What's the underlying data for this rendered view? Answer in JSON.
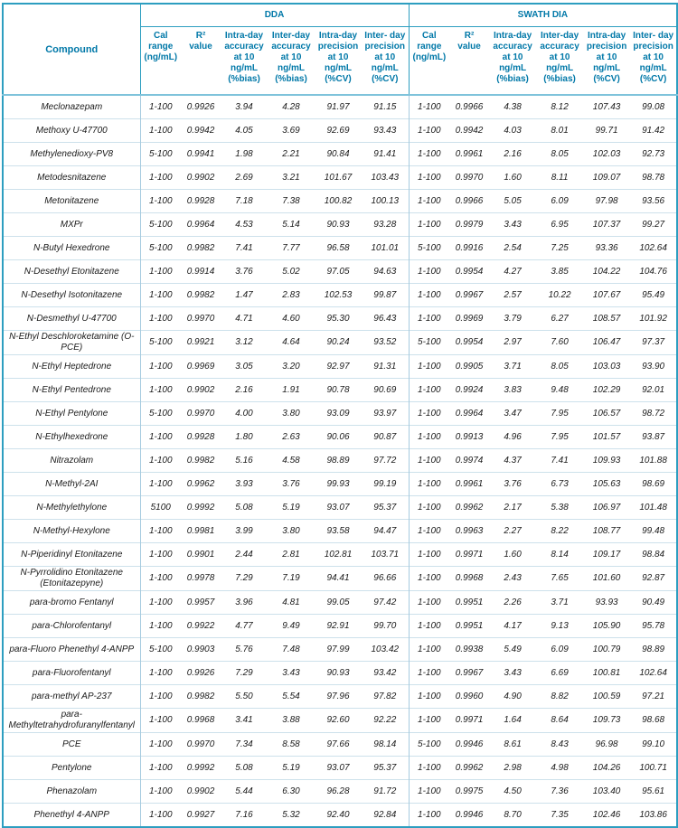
{
  "table": {
    "compound_header": "Compound",
    "sections": [
      {
        "label": "DDA"
      },
      {
        "label": "SWATH DIA"
      }
    ],
    "sub_headers": [
      "Cal\nrange\n(ng/mL)",
      "R²\nvalue",
      "Intra-day\naccuracy\nat 10\nng/mL\n(%bias)",
      "Inter-day\naccuracy\nat 10\nng/mL\n(%bias)",
      "Intra-day\nprecision\nat 10\nng/mL\n(%CV)",
      "Inter- day\nprecision\nat 10\nng/mL\n(%CV)"
    ],
    "rows": [
      {
        "compound": "Meclonazepam",
        "dda": [
          "1-100",
          "0.9926",
          "3.94",
          "4.28",
          "91.97",
          "91.15"
        ],
        "swath": [
          "1-100",
          "0.9966",
          "4.38",
          "8.12",
          "107.43",
          "99.08"
        ]
      },
      {
        "compound": "Methoxy U-47700",
        "dda": [
          "1-100",
          "0.9942",
          "4.05",
          "3.69",
          "92.69",
          "93.43"
        ],
        "swath": [
          "1-100",
          "0.9942",
          "4.03",
          "8.01",
          "99.71",
          "91.42"
        ]
      },
      {
        "compound": "Methylenedioxy-PV8",
        "dda": [
          "5-100",
          "0.9941",
          "1.98",
          "2.21",
          "90.84",
          "91.41"
        ],
        "swath": [
          "1-100",
          "0.9961",
          "2.16",
          "8.05",
          "102.03",
          "92.73"
        ]
      },
      {
        "compound": "Metodesnitazene",
        "dda": [
          "1-100",
          "0.9902",
          "2.69",
          "3.21",
          "101.67",
          "103.43"
        ],
        "swath": [
          "1-100",
          "0.9970",
          "1.60",
          "8.11",
          "109.07",
          "98.78"
        ]
      },
      {
        "compound": "Metonitazene",
        "dda": [
          "1-100",
          "0.9928",
          "7.18",
          "7.38",
          "100.82",
          "100.13"
        ],
        "swath": [
          "1-100",
          "0.9966",
          "5.05",
          "6.09",
          "97.98",
          "93.56"
        ]
      },
      {
        "compound": "MXPr",
        "dda": [
          "5-100",
          "0.9964",
          "4.53",
          "5.14",
          "90.93",
          "93.28"
        ],
        "swath": [
          "1-100",
          "0.9979",
          "3.43",
          "6.95",
          "107.37",
          "99.27"
        ]
      },
      {
        "compound": "N-Butyl Hexedrone",
        "dda": [
          "5-100",
          "0.9982",
          "7.41",
          "7.77",
          "96.58",
          "101.01"
        ],
        "swath": [
          "5-100",
          "0.9916",
          "2.54",
          "7.25",
          "93.36",
          "102.64"
        ]
      },
      {
        "compound": "N-Desethyl Etonitazene",
        "dda": [
          "1-100",
          "0.9914",
          "3.76",
          "5.02",
          "97.05",
          "94.63"
        ],
        "swath": [
          "1-100",
          "0.9954",
          "4.27",
          "3.85",
          "104.22",
          "104.76"
        ]
      },
      {
        "compound": "N-Desethyl Isotonitazene",
        "dda": [
          "1-100",
          "0.9982",
          "1.47",
          "2.83",
          "102.53",
          "99.87"
        ],
        "swath": [
          "1-100",
          "0.9967",
          "2.57",
          "10.22",
          "107.67",
          "95.49"
        ]
      },
      {
        "compound": "N-Desmethyl U-47700",
        "dda": [
          "1-100",
          "0.9970",
          "4.71",
          "4.60",
          "95.30",
          "96.43"
        ],
        "swath": [
          "1-100",
          "0.9969",
          "3.79",
          "6.27",
          "108.57",
          "101.92"
        ]
      },
      {
        "compound": "N-Ethyl Deschloroketamine (O-PCE)",
        "dda": [
          "5-100",
          "0.9921",
          "3.12",
          "4.64",
          "90.24",
          "93.52"
        ],
        "swath": [
          "5-100",
          "0.9954",
          "2.97",
          "7.60",
          "106.47",
          "97.37"
        ]
      },
      {
        "compound": "N-Ethyl Heptedrone",
        "dda": [
          "1-100",
          "0.9969",
          "3.05",
          "3.20",
          "92.97",
          "91.31"
        ],
        "swath": [
          "1-100",
          "0.9905",
          "3.71",
          "8.05",
          "103.03",
          "93.90"
        ]
      },
      {
        "compound": "N-Ethyl Pentedrone",
        "dda": [
          "1-100",
          "0.9902",
          "2.16",
          "1.91",
          "90.78",
          "90.69"
        ],
        "swath": [
          "1-100",
          "0.9924",
          "3.83",
          "9.48",
          "102.29",
          "92.01"
        ]
      },
      {
        "compound": "N-Ethyl Pentylone",
        "dda": [
          "5-100",
          "0.9970",
          "4.00",
          "3.80",
          "93.09",
          "93.97"
        ],
        "swath": [
          "1-100",
          "0.9964",
          "3.47",
          "7.95",
          "106.57",
          "98.72"
        ]
      },
      {
        "compound": "N-Ethylhexedrone",
        "dda": [
          "1-100",
          "0.9928",
          "1.80",
          "2.63",
          "90.06",
          "90.87"
        ],
        "swath": [
          "1-100",
          "0.9913",
          "4.96",
          "7.95",
          "101.57",
          "93.87"
        ]
      },
      {
        "compound": "Nitrazolam",
        "dda": [
          "1-100",
          "0.9982",
          "5.16",
          "4.58",
          "98.89",
          "97.72"
        ],
        "swath": [
          "1-100",
          "0.9974",
          "4.37",
          "7.41",
          "109.93",
          "101.88"
        ]
      },
      {
        "compound": "N-Methyl-2AI",
        "dda": [
          "1-100",
          "0.9962",
          "3.93",
          "3.76",
          "99.93",
          "99.19"
        ],
        "swath": [
          "1-100",
          "0.9961",
          "3.76",
          "6.73",
          "105.63",
          "98.69"
        ]
      },
      {
        "compound": "N-Methylethylone",
        "dda": [
          "5100",
          "0.9992",
          "5.08",
          "5.19",
          "93.07",
          "95.37"
        ],
        "swath": [
          "1-100",
          "0.9962",
          "2.17",
          "5.38",
          "106.97",
          "101.48"
        ]
      },
      {
        "compound": "N-Methyl-Hexylone",
        "dda": [
          "1-100",
          "0.9981",
          "3.99",
          "3.80",
          "93.58",
          "94.47"
        ],
        "swath": [
          "1-100",
          "0.9963",
          "2.27",
          "8.22",
          "108.77",
          "99.48"
        ]
      },
      {
        "compound": "N-Piperidinyl Etonitazene",
        "dda": [
          "1-100",
          "0.9901",
          "2.44",
          "2.81",
          "102.81",
          "103.71"
        ],
        "swath": [
          "1-100",
          "0.9971",
          "1.60",
          "8.14",
          "109.17",
          "98.84"
        ]
      },
      {
        "compound": "N-Pyrrolidino Etonitazene (Etonitazepyne)",
        "dda": [
          "1-100",
          "0.9978",
          "7.29",
          "7.19",
          "94.41",
          "96.66"
        ],
        "swath": [
          "1-100",
          "0.9968",
          "2.43",
          "7.65",
          "101.60",
          "92.87"
        ]
      },
      {
        "compound": "para-bromo Fentanyl",
        "dda": [
          "1-100",
          "0.9957",
          "3.96",
          "4.81",
          "99.05",
          "97.42"
        ],
        "swath": [
          "1-100",
          "0.9951",
          "2.26",
          "3.71",
          "93.93",
          "90.49"
        ]
      },
      {
        "compound": "para-Chlorofentanyl",
        "dda": [
          "1-100",
          "0.9922",
          "4.77",
          "9.49",
          "92.91",
          "99.70"
        ],
        "swath": [
          "1-100",
          "0.9951",
          "4.17",
          "9.13",
          "105.90",
          "95.78"
        ]
      },
      {
        "compound": "para-Fluoro Phenethyl 4-ANPP",
        "dda": [
          "5-100",
          "0.9903",
          "5.76",
          "7.48",
          "97.99",
          "103.42"
        ],
        "swath": [
          "1-100",
          "0.9938",
          "5.49",
          "6.09",
          "100.79",
          "98.89"
        ]
      },
      {
        "compound": "para-Fluorofentanyl",
        "dda": [
          "1-100",
          "0.9926",
          "7.29",
          "3.43",
          "90.93",
          "93.42"
        ],
        "swath": [
          "1-100",
          "0.9967",
          "3.43",
          "6.69",
          "100.81",
          "102.64"
        ]
      },
      {
        "compound": "para-methyl AP-237",
        "dda": [
          "1-100",
          "0.9982",
          "5.50",
          "5.54",
          "97.96",
          "97.82"
        ],
        "swath": [
          "1-100",
          "0.9960",
          "4.90",
          "8.82",
          "100.59",
          "97.21"
        ]
      },
      {
        "compound": "para-Methyltetrahydrofuranylfentanyl",
        "dda": [
          "1-100",
          "0.9968",
          "3.41",
          "3.88",
          "92.60",
          "92.22"
        ],
        "swath": [
          "1-100",
          "0.9971",
          "1.64",
          "8.64",
          "109.73",
          "98.68"
        ]
      },
      {
        "compound": "PCE",
        "dda": [
          "1-100",
          "0.9970",
          "7.34",
          "8.58",
          "97.66",
          "98.14"
        ],
        "swath": [
          "5-100",
          "0.9946",
          "8.61",
          "8.43",
          "96.98",
          "99.10"
        ]
      },
      {
        "compound": "Pentylone",
        "dda": [
          "1-100",
          "0.9992",
          "5.08",
          "5.19",
          "93.07",
          "95.37"
        ],
        "swath": [
          "1-100",
          "0.9962",
          "2.98",
          "4.98",
          "104.26",
          "100.71"
        ]
      },
      {
        "compound": "Phenazolam",
        "dda": [
          "1-100",
          "0.9902",
          "5.44",
          "6.30",
          "96.28",
          "91.72"
        ],
        "swath": [
          "1-100",
          "0.9975",
          "4.50",
          "7.36",
          "103.40",
          "95.61"
        ]
      },
      {
        "compound": "Phenethyl 4-ANPP",
        "dda": [
          "1-100",
          "0.9927",
          "7.16",
          "5.32",
          "92.40",
          "92.84"
        ],
        "swath": [
          "1-100",
          "0.9946",
          "8.70",
          "7.35",
          "102.46",
          "103.86"
        ]
      }
    ]
  },
  "colors": {
    "header_text": "#0078A8",
    "outer_border": "#2D9EC0",
    "row_separator": "#CDE1EB",
    "section_divider": "#A6CBDF",
    "body_text": "#1A1A1A"
  }
}
